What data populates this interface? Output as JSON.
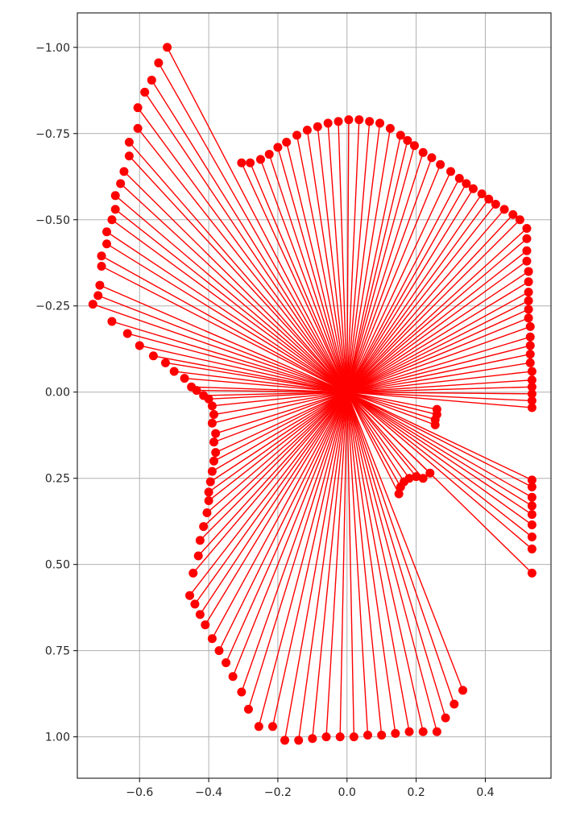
{
  "chart_data": {
    "type": "scatter",
    "title": "",
    "xlabel": "",
    "ylabel": "",
    "xlim": [
      -0.78,
      0.59
    ],
    "ylim": [
      1.12,
      -1.1
    ],
    "y_inverted": true,
    "grid": true,
    "legend": "none",
    "x_ticks": [
      -0.6,
      -0.4,
      -0.2,
      0.0,
      0.2,
      0.4
    ],
    "x_tick_labels": [
      "−0.6",
      "−0.4",
      "−0.2",
      "0.0",
      "0.2",
      "0.4"
    ],
    "y_ticks": [
      -1.0,
      -0.75,
      -0.5,
      -0.25,
      0.0,
      0.25,
      0.5,
      0.75,
      1.0
    ],
    "y_tick_labels": [
      "−1.00",
      "−0.75",
      "−0.50",
      "−0.25",
      "0.00",
      "0.25",
      "0.50",
      "0.75",
      "1.00"
    ],
    "origin": [
      0.0,
      0.0
    ],
    "color": "#ff0000",
    "series": [
      {
        "style": "rays from origin with marker at endpoint",
        "points": [
          [
            -0.52,
            -1.0
          ],
          [
            -0.545,
            -0.955
          ],
          [
            -0.565,
            -0.905
          ],
          [
            -0.585,
            -0.87
          ],
          [
            -0.605,
            -0.825
          ],
          [
            -0.605,
            -0.765
          ],
          [
            -0.63,
            -0.725
          ],
          [
            -0.63,
            -0.685
          ],
          [
            -0.645,
            -0.64
          ],
          [
            -0.655,
            -0.605
          ],
          [
            -0.67,
            -0.57
          ],
          [
            -0.67,
            -0.53
          ],
          [
            -0.68,
            -0.5
          ],
          [
            -0.695,
            -0.465
          ],
          [
            -0.695,
            -0.43
          ],
          [
            -0.71,
            -0.395
          ],
          [
            -0.71,
            -0.365
          ],
          [
            -0.715,
            -0.31
          ],
          [
            -0.72,
            -0.28
          ],
          [
            -0.735,
            -0.255
          ],
          [
            -0.68,
            -0.205
          ],
          [
            -0.635,
            -0.17
          ],
          [
            -0.6,
            -0.135
          ],
          [
            -0.56,
            -0.105
          ],
          [
            -0.525,
            -0.085
          ],
          [
            -0.5,
            -0.06
          ],
          [
            -0.47,
            -0.04
          ],
          [
            -0.45,
            -0.015
          ],
          [
            -0.435,
            -0.005
          ],
          [
            -0.415,
            0.01
          ],
          [
            -0.4,
            0.02
          ],
          [
            -0.39,
            0.04
          ],
          [
            -0.385,
            0.065
          ],
          [
            -0.39,
            0.09
          ],
          [
            -0.38,
            0.12
          ],
          [
            -0.385,
            0.145
          ],
          [
            -0.38,
            0.175
          ],
          [
            -0.385,
            0.2
          ],
          [
            -0.39,
            0.23
          ],
          [
            -0.395,
            0.26
          ],
          [
            -0.4,
            0.29
          ],
          [
            -0.4,
            0.315
          ],
          [
            -0.405,
            0.35
          ],
          [
            -0.415,
            0.39
          ],
          [
            -0.425,
            0.43
          ],
          [
            -0.43,
            0.475
          ],
          [
            -0.445,
            0.525
          ],
          [
            -0.455,
            0.59
          ],
          [
            -0.44,
            0.615
          ],
          [
            -0.425,
            0.645
          ],
          [
            -0.41,
            0.675
          ],
          [
            -0.39,
            0.715
          ],
          [
            -0.37,
            0.75
          ],
          [
            -0.35,
            0.785
          ],
          [
            -0.33,
            0.825
          ],
          [
            -0.305,
            0.87
          ],
          [
            -0.285,
            0.92
          ],
          [
            -0.255,
            0.97
          ],
          [
            -0.215,
            0.97
          ],
          [
            -0.18,
            1.01
          ],
          [
            -0.14,
            1.01
          ],
          [
            -0.1,
            1.005
          ],
          [
            -0.06,
            1.0
          ],
          [
            -0.02,
            1.0
          ],
          [
            0.02,
            1.0
          ],
          [
            0.06,
            0.995
          ],
          [
            0.1,
            0.995
          ],
          [
            0.14,
            0.99
          ],
          [
            0.18,
            0.985
          ],
          [
            0.22,
            0.985
          ],
          [
            0.26,
            0.985
          ],
          [
            0.285,
            0.945
          ],
          [
            0.31,
            0.905
          ],
          [
            0.335,
            0.865
          ],
          [
            0.535,
            0.525
          ],
          [
            0.535,
            0.455
          ],
          [
            0.535,
            0.42
          ],
          [
            0.535,
            0.385
          ],
          [
            0.535,
            0.355
          ],
          [
            0.535,
            0.33
          ],
          [
            0.535,
            0.305
          ],
          [
            0.535,
            0.275
          ],
          [
            0.535,
            0.255
          ],
          [
            0.15,
            0.295
          ],
          [
            0.155,
            0.275
          ],
          [
            0.165,
            0.26
          ],
          [
            0.18,
            0.25
          ],
          [
            0.2,
            0.245
          ],
          [
            0.22,
            0.25
          ],
          [
            0.24,
            0.235
          ],
          [
            0.255,
            0.095
          ],
          [
            0.255,
            0.08
          ],
          [
            0.26,
            0.065
          ],
          [
            0.26,
            0.05
          ],
          [
            0.535,
            0.045
          ],
          [
            0.535,
            0.025
          ],
          [
            0.535,
            0.005
          ],
          [
            0.535,
            -0.015
          ],
          [
            0.535,
            -0.035
          ],
          [
            0.535,
            -0.06
          ],
          [
            0.53,
            -0.085
          ],
          [
            0.53,
            -0.11
          ],
          [
            0.53,
            -0.135
          ],
          [
            0.53,
            -0.16
          ],
          [
            0.53,
            -0.19
          ],
          [
            0.525,
            -0.215
          ],
          [
            0.525,
            -0.24
          ],
          [
            0.525,
            -0.265
          ],
          [
            0.525,
            -0.29
          ],
          [
            0.525,
            -0.32
          ],
          [
            0.525,
            -0.35
          ],
          [
            0.52,
            -0.38
          ],
          [
            0.52,
            -0.41
          ],
          [
            0.52,
            -0.445
          ],
          [
            0.52,
            -0.475
          ],
          [
            0.5,
            -0.5
          ],
          [
            0.48,
            -0.515
          ],
          [
            0.455,
            -0.53
          ],
          [
            0.43,
            -0.545
          ],
          [
            0.41,
            -0.56
          ],
          [
            0.39,
            -0.575
          ],
          [
            0.365,
            -0.59
          ],
          [
            0.345,
            -0.605
          ],
          [
            0.325,
            -0.62
          ],
          [
            0.3,
            -0.64
          ],
          [
            0.27,
            -0.66
          ],
          [
            0.245,
            -0.68
          ],
          [
            0.22,
            -0.695
          ],
          [
            0.195,
            -0.715
          ],
          [
            0.175,
            -0.73
          ],
          [
            0.155,
            -0.745
          ],
          [
            0.125,
            -0.765
          ],
          [
            0.095,
            -0.78
          ],
          [
            0.065,
            -0.785
          ],
          [
            0.035,
            -0.79
          ],
          [
            0.005,
            -0.79
          ],
          [
            -0.025,
            -0.785
          ],
          [
            -0.055,
            -0.78
          ],
          [
            -0.085,
            -0.77
          ],
          [
            -0.115,
            -0.76
          ],
          [
            -0.145,
            -0.745
          ],
          [
            -0.175,
            -0.725
          ],
          [
            -0.2,
            -0.71
          ],
          [
            -0.225,
            -0.69
          ],
          [
            -0.25,
            -0.675
          ],
          [
            -0.28,
            -0.665
          ],
          [
            -0.305,
            -0.665
          ]
        ]
      }
    ]
  }
}
